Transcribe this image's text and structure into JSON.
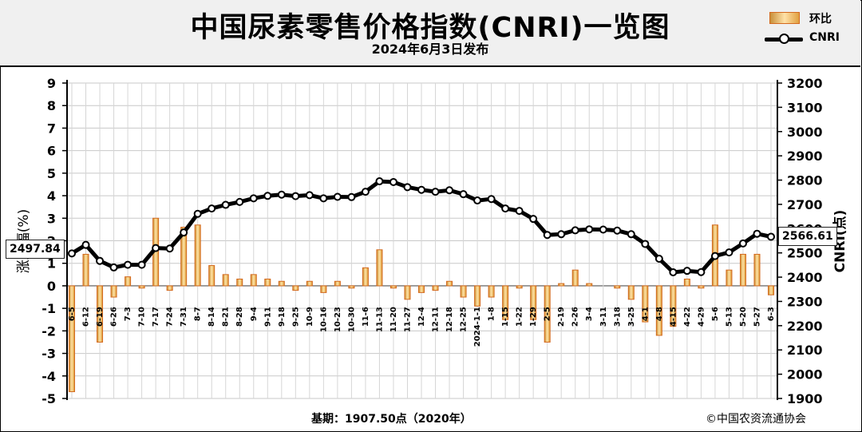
{
  "header": {
    "title": "中国尿素零售价格指数(CNRI)一览图",
    "subtitle": "2024年6月3日发布"
  },
  "legend": {
    "bar_label": "环比",
    "line_label": "CNRI"
  },
  "footer": {
    "base": "基期：1907.50点（2020年）",
    "copyright": "©中国农资流通协会"
  },
  "callouts": {
    "left": "2497.84",
    "right": "2566.61"
  },
  "chart_data": {
    "type": "bar+line",
    "title": "中国尿素零售价格指数(CNRI)一览图",
    "categories": [
      "6-5",
      "6-12",
      "6-19",
      "6-26",
      "7-3",
      "7-10",
      "7-17",
      "7-24",
      "7-31",
      "8-7",
      "8-14",
      "8-21",
      "8-28",
      "9-4",
      "9-11",
      "9-18",
      "9-25",
      "10-9",
      "10-16",
      "10-23",
      "10-30",
      "11-6",
      "11-13",
      "11-20",
      "11-27",
      "12-4",
      "12-11",
      "12-18",
      "12-25",
      "2024-1-1",
      "1-8",
      "1-15",
      "1-22",
      "1-29",
      "2-5",
      "2-19",
      "2-26",
      "3-4",
      "3-11",
      "3-18",
      "3-25",
      "4-1",
      "4-8",
      "4-15",
      "4-22",
      "4-29",
      "5-6",
      "5-13",
      "5-20",
      "5-27",
      "6-3"
    ],
    "series": [
      {
        "name": "环比",
        "axis": "left",
        "type": "bar",
        "values": [
          -4.7,
          1.4,
          -2.5,
          -0.5,
          0.4,
          -0.1,
          3.0,
          -0.2,
          2.6,
          2.7,
          0.9,
          0.5,
          0.3,
          0.5,
          0.3,
          0.2,
          -0.2,
          0.2,
          -0.3,
          0.2,
          -0.1,
          0.8,
          1.6,
          -0.1,
          -0.6,
          -0.3,
          -0.2,
          0.2,
          -0.5,
          -0.9,
          -0.5,
          -1.5,
          -0.1,
          -1.5,
          -2.5,
          0.1,
          0.7,
          0.1,
          0,
          -0.1,
          -0.6,
          -1.6,
          -2.2,
          -1.8,
          0.3,
          -0.1,
          2.7,
          0.7,
          1.4,
          1.4,
          -0.4
        ]
      },
      {
        "name": "CNRI",
        "axis": "right",
        "type": "line",
        "values": [
          2497.84,
          2533,
          2467,
          2440,
          2451,
          2451,
          2520,
          2518,
          2584,
          2661,
          2683,
          2698,
          2710,
          2725,
          2735,
          2740,
          2734,
          2738,
          2725,
          2731,
          2730,
          2752,
          2795,
          2792,
          2771,
          2760,
          2752,
          2758,
          2742,
          2716,
          2722,
          2683,
          2673,
          2640,
          2574,
          2577,
          2593,
          2597,
          2596,
          2592,
          2577,
          2537,
          2476,
          2420,
          2426,
          2421,
          2487,
          2502,
          2539,
          2579,
          2566.61
        ]
      }
    ],
    "ylabel_left": "涨跌幅(%)",
    "ylabel_right": "CNRI(点)",
    "ylim_left": [
      -5,
      9
    ],
    "ylim_right": [
      1900,
      3200
    ],
    "yticks_left": [
      "9",
      "8",
      "7",
      "6",
      "5",
      "4",
      "3",
      "2",
      "1",
      "0",
      "-1",
      "-2",
      "-3",
      "-4",
      "-5"
    ],
    "yticks_right": [
      "3200",
      "3100",
      "3000",
      "2900",
      "2800",
      "2700",
      "2600",
      "2500",
      "2400",
      "2300",
      "2200",
      "2100",
      "2000",
      "1900"
    ],
    "grid": true,
    "legend_position": "top-right"
  }
}
